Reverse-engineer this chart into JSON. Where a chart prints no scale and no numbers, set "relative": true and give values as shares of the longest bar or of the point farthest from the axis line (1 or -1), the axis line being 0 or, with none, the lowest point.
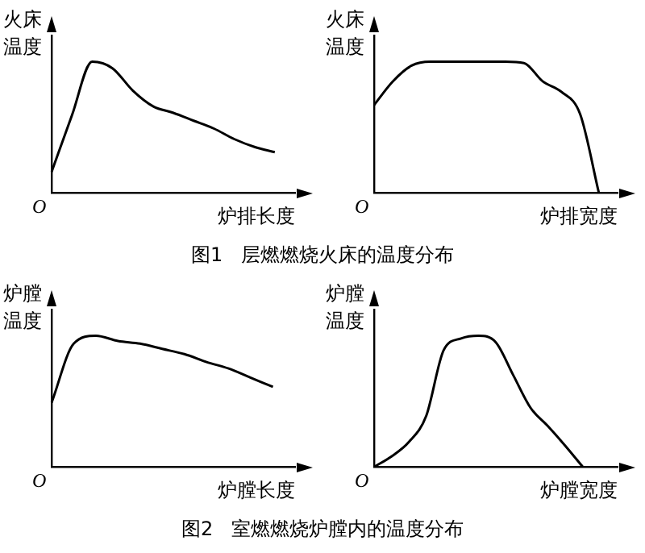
{
  "chart_data": [
    {
      "type": "line",
      "relative": true,
      "ylabel": "火床温度",
      "xlabel": "炉排长度",
      "categories": [
        null,
        null,
        null,
        null,
        null,
        null,
        null,
        null,
        null,
        null,
        null,
        null,
        null
      ],
      "grid": false,
      "legend": false,
      "marker": "none",
      "annotations": [
        "O",
        "图1   层燃燃烧火床的温度分布"
      ],
      "series": [
        {
          "color": "#000000",
          "values": [
            0.16,
            0.59,
            1,
            0.95,
            0.78,
            0.66,
            0.61,
            0.55,
            0.49,
            0.41,
            0.35,
            0.31,
            null
          ]
        }
      ]
    },
    {
      "type": "line",
      "relative": true,
      "ylabel": "火床温度",
      "xlabel": "炉排宽度",
      "categories": [
        null,
        null,
        null,
        null,
        null,
        null,
        null,
        null,
        null,
        null,
        null,
        null,
        null,
        null
      ],
      "grid": false,
      "legend": false,
      "marker": "none",
      "annotations": [
        "O"
      ],
      "series": [
        {
          "color": "#000000",
          "values": [
            0.67,
            0.85,
            0.97,
            1,
            1,
            1,
            1,
            1,
            0.99,
            0.85,
            0.77,
            0.6,
            0,
            null
          ]
        }
      ]
    },
    {
      "type": "line",
      "relative": true,
      "ylabel": "炉膛温度",
      "xlabel": "炉膛长度",
      "categories": [
        null,
        null,
        null,
        null,
        null,
        null,
        null,
        null,
        null,
        null,
        null,
        null
      ],
      "grid": false,
      "legend": false,
      "marker": "none",
      "annotations": [
        "O",
        "图2   室燃燃烧炉膛内的温度分布"
      ],
      "series": [
        {
          "color": "#000000",
          "values": [
            0.49,
            0.94,
            1,
            0.96,
            0.94,
            0.9,
            0.86,
            0.8,
            0.75,
            0.68,
            0.61,
            null
          ]
        }
      ]
    },
    {
      "type": "line",
      "relative": true,
      "ylabel": "炉膛温度",
      "xlabel": "炉膛宽度",
      "categories": [
        null,
        null,
        null,
        null,
        null,
        null,
        null,
        null,
        null,
        null,
        null,
        null,
        null,
        null,
        null
      ],
      "grid": false,
      "legend": false,
      "marker": "none",
      "annotations": [
        "O"
      ],
      "series": [
        {
          "color": "#000000",
          "values": [
            0,
            0.08,
            0.19,
            0.39,
            0.89,
            0.98,
            1,
            0.95,
            0.7,
            0.45,
            0.31,
            0.16,
            0,
            null,
            null
          ]
        }
      ]
    }
  ]
}
